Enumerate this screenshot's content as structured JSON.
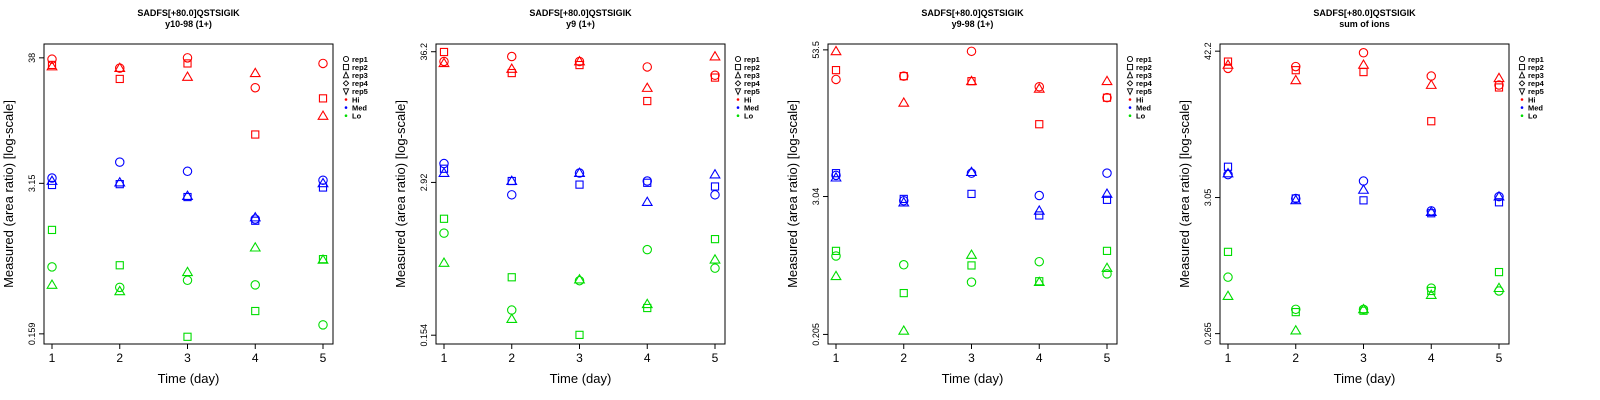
{
  "chart_data": [
    {
      "type": "scatter",
      "title": "SADFS[+80.0]QSTSIGIK",
      "subtitle": "y10-98 (1+)",
      "xlabel": "Time (day)",
      "ylabel": "Measured (area ratio) [log-scale]",
      "scale": "log",
      "x_ticks": [
        "1",
        "2",
        "3",
        "4",
        "5"
      ],
      "y_ticks": [
        "0.159",
        "3.15",
        "38"
      ],
      "ylim": [
        0.13,
        50
      ],
      "series": [
        {
          "level": "Hi",
          "rep": "rep1",
          "x": [
            1,
            2,
            3,
            4,
            5
          ],
          "y": [
            37,
            31,
            38,
            21,
            34
          ]
        },
        {
          "level": "Hi",
          "rep": "rep2",
          "x": [
            1,
            2,
            3,
            4,
            5
          ],
          "y": [
            33,
            25,
            34,
            8.3,
            17
          ]
        },
        {
          "level": "Hi",
          "rep": "rep3",
          "x": [
            1,
            2,
            3,
            4,
            5
          ],
          "y": [
            32,
            31,
            26,
            28,
            12
          ]
        },
        {
          "level": "Med",
          "rep": "rep1",
          "x": [
            1,
            2,
            3,
            4,
            5
          ],
          "y": [
            3.5,
            4.8,
            4.0,
            1.55,
            3.35
          ]
        },
        {
          "level": "Med",
          "rep": "rep2",
          "x": [
            1,
            2,
            3,
            4,
            5
          ],
          "y": [
            3.05,
            3.1,
            2.4,
            1.5,
            2.9
          ]
        },
        {
          "level": "Med",
          "rep": "rep3",
          "x": [
            1,
            2,
            3,
            4,
            5
          ],
          "y": [
            3.3,
            3.2,
            2.45,
            1.6,
            3.15
          ]
        },
        {
          "level": "Lo",
          "rep": "rep1",
          "x": [
            1,
            2,
            3,
            4,
            5
          ],
          "y": [
            0.6,
            0.4,
            0.46,
            0.42,
            0.19
          ]
        },
        {
          "level": "Lo",
          "rep": "rep2",
          "x": [
            1,
            2,
            3,
            4,
            5
          ],
          "y": [
            1.25,
            0.62,
            0.15,
            0.25,
            0.7
          ]
        },
        {
          "level": "Lo",
          "rep": "rep3",
          "x": [
            1,
            2,
            3,
            4,
            5
          ],
          "y": [
            0.42,
            0.37,
            0.54,
            0.88,
            0.69
          ]
        }
      ],
      "legend": [
        "rep1",
        "rep2",
        "rep3",
        "rep4",
        "rep5",
        "Hi",
        "Med",
        "Lo"
      ],
      "legend_position": "right"
    },
    {
      "type": "scatter",
      "title": "SADFS[+80.0]QSTSIGIK",
      "subtitle": "y9 (1+)",
      "xlabel": "Time (day)",
      "ylabel": "Measured (area ratio) [log-scale]",
      "scale": "log",
      "x_ticks": [
        "1",
        "2",
        "3",
        "4",
        "5"
      ],
      "y_ticks": [
        "0.154",
        "2.92",
        "36.2"
      ],
      "ylim": [
        0.13,
        42
      ],
      "series": [
        {
          "level": "Hi",
          "rep": "rep1",
          "x": [
            1,
            2,
            3,
            4,
            5
          ],
          "y": [
            30,
            33,
            30,
            27,
            23
          ]
        },
        {
          "level": "Hi",
          "rep": "rep2",
          "x": [
            1,
            2,
            3,
            4,
            5
          ],
          "y": [
            36,
            24,
            28,
            14,
            22
          ]
        },
        {
          "level": "Hi",
          "rep": "rep3",
          "x": [
            1,
            2,
            3,
            4,
            5
          ],
          "y": [
            29,
            26,
            30,
            18,
            33
          ]
        },
        {
          "level": "Med",
          "rep": "rep1",
          "x": [
            1,
            2,
            3,
            4,
            5
          ],
          "y": [
            4.2,
            2.3,
            3.5,
            3.0,
            2.3
          ]
        },
        {
          "level": "Med",
          "rep": "rep2",
          "x": [
            1,
            2,
            3,
            4,
            5
          ],
          "y": [
            3.8,
            3.0,
            2.8,
            2.9,
            2.7
          ]
        },
        {
          "level": "Med",
          "rep": "rep3",
          "x": [
            1,
            2,
            3,
            4,
            5
          ],
          "y": [
            3.5,
            3.0,
            3.5,
            2.0,
            3.4
          ]
        },
        {
          "level": "Lo",
          "rep": "rep1",
          "x": [
            1,
            2,
            3,
            4,
            5
          ],
          "y": [
            1.1,
            0.25,
            0.44,
            0.8,
            0.56
          ]
        },
        {
          "level": "Lo",
          "rep": "rep2",
          "x": [
            1,
            2,
            3,
            4,
            5
          ],
          "y": [
            1.45,
            0.47,
            0.155,
            0.26,
            0.98
          ]
        },
        {
          "level": "Lo",
          "rep": "rep3",
          "x": [
            1,
            2,
            3,
            4,
            5
          ],
          "y": [
            0.62,
            0.21,
            0.45,
            0.28,
            0.66
          ]
        }
      ],
      "legend": [
        "rep1",
        "rep2",
        "rep3",
        "rep4",
        "rep5",
        "Hi",
        "Med",
        "Lo"
      ],
      "legend_position": "right"
    },
    {
      "type": "scatter",
      "title": "SADFS[+80.0]QSTSIGIK",
      "subtitle": "y9-98 (1+)",
      "xlabel": "Time (day)",
      "ylabel": "Measured (area ratio) [log-scale]",
      "scale": "log",
      "x_ticks": [
        "1",
        "2",
        "3",
        "4",
        "5"
      ],
      "y_ticks": [
        "0.205",
        "3.04",
        "53.5"
      ],
      "ylim": [
        0.17,
        60
      ],
      "series": [
        {
          "level": "Hi",
          "rep": "rep1",
          "x": [
            1,
            2,
            3,
            4,
            5
          ],
          "y": [
            30,
            32,
            52,
            26,
            21
          ]
        },
        {
          "level": "Hi",
          "rep": "rep2",
          "x": [
            1,
            2,
            3,
            4,
            5
          ],
          "y": [
            36,
            32,
            29,
            12.5,
            21
          ]
        },
        {
          "level": "Hi",
          "rep": "rep3",
          "x": [
            1,
            2,
            3,
            4,
            5
          ],
          "y": [
            52,
            19,
            29,
            25,
            29
          ]
        },
        {
          "level": "Med",
          "rep": "rep1",
          "x": [
            1,
            2,
            3,
            4,
            5
          ],
          "y": [
            4.6,
            2.8,
            4.8,
            3.1,
            4.8
          ]
        },
        {
          "level": "Med",
          "rep": "rep2",
          "x": [
            1,
            2,
            3,
            4,
            5
          ],
          "y": [
            4.8,
            2.9,
            3.2,
            2.1,
            2.85
          ]
        },
        {
          "level": "Med",
          "rep": "rep3",
          "x": [
            1,
            2,
            3,
            4,
            5
          ],
          "y": [
            4.4,
            2.7,
            4.9,
            2.3,
            3.2
          ]
        },
        {
          "level": "Lo",
          "rep": "rep1",
          "x": [
            1,
            2,
            3,
            4,
            5
          ],
          "y": [
            0.95,
            0.8,
            0.57,
            0.85,
            0.67
          ]
        },
        {
          "level": "Lo",
          "rep": "rep2",
          "x": [
            1,
            2,
            3,
            4,
            5
          ],
          "y": [
            1.05,
            0.46,
            0.79,
            0.58,
            1.05
          ]
        },
        {
          "level": "Lo",
          "rep": "rep3",
          "x": [
            1,
            2,
            3,
            4,
            5
          ],
          "y": [
            0.64,
            0.22,
            0.97,
            0.57,
            0.75
          ]
        }
      ],
      "legend": [
        "rep1",
        "rep2",
        "rep3",
        "rep4",
        "rep5",
        "Hi",
        "Med",
        "Lo"
      ],
      "legend_position": "right"
    },
    {
      "type": "scatter",
      "title": "SADFS[+80.0]QSTSIGIK",
      "subtitle": "sum of ions",
      "xlabel": "Time (day)",
      "ylabel": "Measured (area ratio) [log-scale]",
      "scale": "log",
      "x_ticks": [
        "1",
        "2",
        "3",
        "4",
        "5"
      ],
      "y_ticks": [
        "0.265",
        "3.05",
        "42.2"
      ],
      "ylim": [
        0.22,
        48
      ],
      "series": [
        {
          "level": "Hi",
          "rep": "rep1",
          "x": [
            1,
            2,
            3,
            4,
            5
          ],
          "y": [
            31,
            32,
            41,
            27,
            23
          ]
        },
        {
          "level": "Hi",
          "rep": "rep2",
          "x": [
            1,
            2,
            3,
            4,
            5
          ],
          "y": [
            35,
            30,
            29,
            12,
            22
          ]
        },
        {
          "level": "Hi",
          "rep": "rep3",
          "x": [
            1,
            2,
            3,
            4,
            5
          ],
          "y": [
            33,
            25,
            33,
            23,
            26
          ]
        },
        {
          "level": "Med",
          "rep": "rep1",
          "x": [
            1,
            2,
            3,
            4,
            5
          ],
          "y": [
            4.6,
            3.0,
            4.1,
            2.4,
            3.1
          ]
        },
        {
          "level": "Med",
          "rep": "rep2",
          "x": [
            1,
            2,
            3,
            4,
            5
          ],
          "y": [
            5.3,
            3.0,
            2.9,
            2.3,
            2.8
          ]
        },
        {
          "level": "Med",
          "rep": "rep3",
          "x": [
            1,
            2,
            3,
            4,
            5
          ],
          "y": [
            4.7,
            2.9,
            3.5,
            2.35,
            3.1
          ]
        },
        {
          "level": "Lo",
          "rep": "rep1",
          "x": [
            1,
            2,
            3,
            4,
            5
          ],
          "y": [
            0.73,
            0.41,
            0.41,
            0.6,
            0.57
          ]
        },
        {
          "level": "Lo",
          "rep": "rep2",
          "x": [
            1,
            2,
            3,
            4,
            5
          ],
          "y": [
            1.15,
            0.39,
            0.4,
            0.57,
            0.8
          ]
        },
        {
          "level": "Lo",
          "rep": "rep3",
          "x": [
            1,
            2,
            3,
            4,
            5
          ],
          "y": [
            0.52,
            0.28,
            0.41,
            0.53,
            0.6
          ]
        }
      ],
      "legend": [
        "rep1",
        "rep2",
        "rep3",
        "rep4",
        "rep5",
        "Hi",
        "Med",
        "Lo"
      ],
      "legend_position": "right"
    }
  ],
  "colors": {
    "Hi": "#ff0000",
    "Med": "#0000ff",
    "Lo": "#00dd00",
    "axis": "#000000"
  },
  "legend_markers": [
    "circle",
    "square",
    "triangle-up",
    "diamond",
    "triangle-down",
    "dot",
    "dot",
    "dot"
  ]
}
